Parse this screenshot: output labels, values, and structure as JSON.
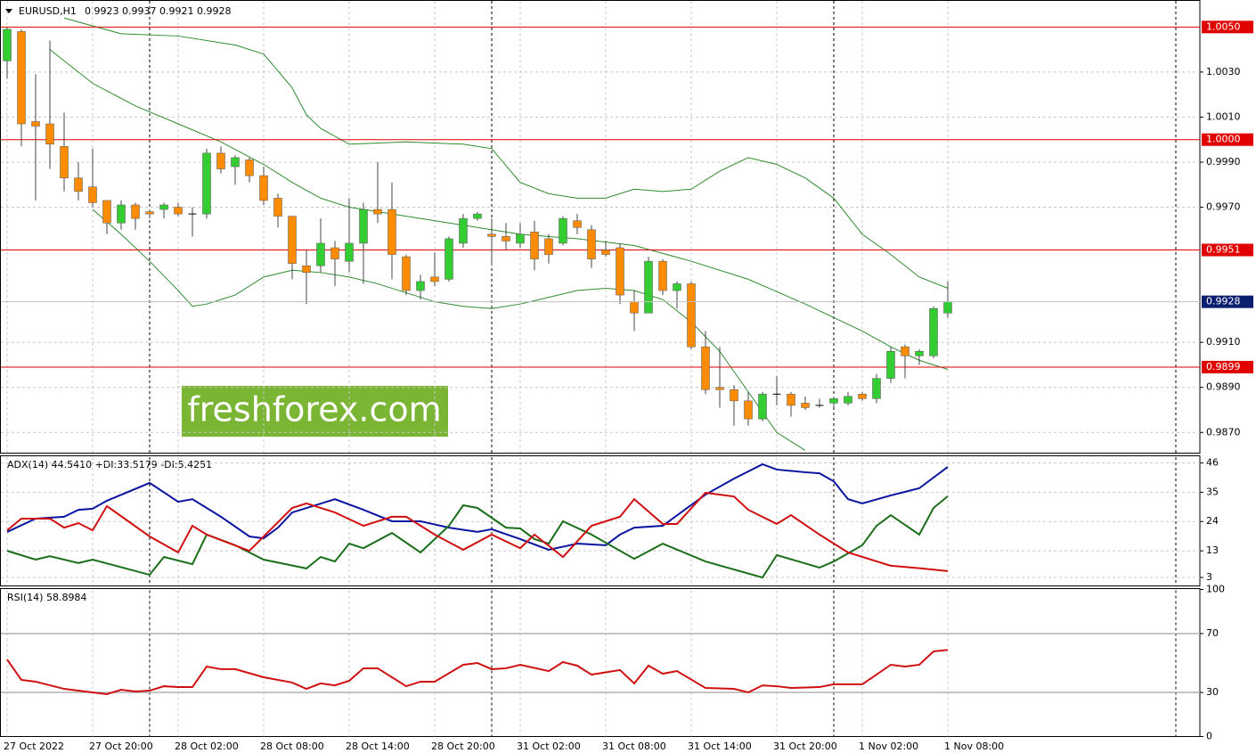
{
  "watermark": "freshforex.com",
  "chart_data": [
    {
      "type": "candlestick",
      "title": "EURUSD,H1",
      "categories": [
        "27 Oct 2022",
        null,
        null,
        null,
        null,
        null,
        "27 Oct 20:00",
        null,
        null,
        null,
        null,
        null,
        "28 Oct 02:00",
        null,
        null,
        null,
        null,
        null,
        "28 Oct 08:00",
        null,
        null,
        null,
        null,
        null,
        "28 Oct 14:00",
        null,
        null,
        null,
        null,
        null,
        "28 Oct 20:00",
        null,
        null,
        null,
        null,
        null,
        "31 Oct 02:00",
        null,
        null,
        null,
        null,
        null,
        "31 Oct 08:00",
        null,
        null,
        null,
        null,
        null,
        "31 Oct 14:00",
        null,
        null,
        null,
        null,
        null,
        "31 Oct 20:00",
        null,
        null,
        null,
        null,
        null,
        "1 Nov 02:00",
        null,
        null,
        null,
        null,
        null,
        "1 Nov 08:00"
      ],
      "open": [
        1.0035,
        1.0048,
        1.0008,
        1.0007,
        0.9997,
        0.9983,
        0.9979,
        0.9973,
        0.9963,
        0.9971,
        0.9968,
        0.9969,
        0.997,
        0.9967,
        0.9967,
        0.9994,
        0.9988,
        0.9991,
        0.9984,
        0.9974,
        0.9966,
        0.9944,
        0.9944,
        0.9952,
        0.9946,
        0.9954,
        0.9969,
        0.9969,
        0.9948,
        0.9933,
        0.9939,
        0.9938,
        0.9954,
        0.9965,
        0.9958,
        0.9957,
        0.9954,
        0.9959,
        0.9956,
        0.9954,
        0.9964,
        0.996,
        0.9951,
        0.9952,
        0.9928,
        0.9923,
        0.9946,
        0.9933,
        0.9936,
        0.9908,
        0.989,
        0.9889,
        0.9884,
        0.9876,
        0.9887,
        0.9887,
        0.9883,
        0.9882,
        0.9883,
        0.9883,
        0.9887,
        0.9885,
        0.9894,
        0.9908,
        0.9904,
        0.9904,
        0.9923
      ],
      "high": [
        1.005,
        1.0049,
        1.0029,
        1.0044,
        1.0012,
        0.999,
        0.9996,
        0.9973,
        0.9973,
        0.9972,
        0.9969,
        0.9972,
        0.9972,
        0.997,
        0.9996,
        0.9997,
        0.9993,
        0.9992,
        0.9988,
        0.9976,
        0.9966,
        0.9951,
        0.9965,
        0.9955,
        0.9974,
        0.9972,
        0.999,
        0.9981,
        0.9949,
        0.994,
        0.995,
        0.9957,
        0.9967,
        0.9968,
        0.9965,
        0.9963,
        0.9963,
        0.9964,
        0.9958,
        0.9966,
        0.9967,
        0.9962,
        0.9955,
        0.9954,
        0.9933,
        0.9948,
        0.9947,
        0.9937,
        0.9937,
        0.9915,
        0.9908,
        0.9891,
        0.9888,
        0.9888,
        0.9895,
        0.9888,
        0.9886,
        0.9885,
        0.9886,
        0.9888,
        0.9888,
        0.9896,
        0.9908,
        0.9909,
        0.9907,
        0.9926,
        0.9937
      ],
      "low": [
        1.0027,
        0.9997,
        0.9973,
        0.9987,
        0.9977,
        0.9973,
        0.997,
        0.9958,
        0.996,
        0.996,
        0.9965,
        0.9965,
        0.9966,
        0.9957,
        0.9965,
        0.9985,
        0.998,
        0.9981,
        0.9971,
        0.9961,
        0.9938,
        0.9927,
        0.9941,
        0.9935,
        0.9941,
        0.9936,
        0.9963,
        0.9938,
        0.9931,
        0.9929,
        0.9935,
        0.9937,
        0.9952,
        0.9964,
        0.9944,
        0.9951,
        0.9952,
        0.9942,
        0.9945,
        0.9953,
        0.9958,
        0.9943,
        0.9948,
        0.9927,
        0.9915,
        0.9923,
        0.9931,
        0.9925,
        0.9907,
        0.9887,
        0.9881,
        0.9873,
        0.9873,
        0.9875,
        0.9882,
        0.9877,
        0.988,
        0.9881,
        0.9881,
        0.9882,
        0.9884,
        0.9883,
        0.9892,
        0.9894,
        0.99,
        0.9903,
        0.9921
      ],
      "close": [
        1.0049,
        1.0007,
        1.0006,
        0.9998,
        0.9983,
        0.9977,
        0.9972,
        0.9963,
        0.9971,
        0.9965,
        0.9967,
        0.9971,
        0.9967,
        0.9967,
        0.9994,
        0.9987,
        0.9992,
        0.9984,
        0.9973,
        0.9966,
        0.9945,
        0.9941,
        0.9954,
        0.9947,
        0.9954,
        0.9969,
        0.9967,
        0.9949,
        0.9933,
        0.9937,
        0.9937,
        0.9956,
        0.9965,
        0.9967,
        0.9957,
        0.9955,
        0.9958,
        0.9947,
        0.9949,
        0.9965,
        0.9961,
        0.9947,
        0.9949,
        0.9931,
        0.9923,
        0.9946,
        0.9933,
        0.9936,
        0.9908,
        0.9889,
        0.9889,
        0.9884,
        0.9876,
        0.9887,
        0.9887,
        0.9882,
        0.9881,
        0.9882,
        0.9885,
        0.9886,
        0.9885,
        0.9894,
        0.9906,
        0.9904,
        0.9906,
        0.9925,
        0.9928
      ],
      "up_color": "#33cc33",
      "down_color": "#ff8c00",
      "wick_color": "#444444",
      "ylim": [
        0.9861,
        1.0062
      ],
      "yticks": [
        {
          "value": 0.987,
          "label": "0.9870"
        },
        {
          "value": 0.989,
          "label": "0.9890"
        },
        {
          "value": 0.991,
          "label": "0.9910"
        },
        {
          "value": 0.997,
          "label": "0.9970"
        },
        {
          "value": 0.999,
          "label": "0.9990"
        },
        {
          "value": 1.001,
          "label": "1.0010"
        },
        {
          "value": 1.003,
          "label": "1.0030"
        }
      ],
      "grid": true,
      "levels": [
        {
          "value": 1.005,
          "label": "1.0050"
        },
        {
          "value": 1,
          "label": "1.0000"
        },
        0.9951,
        0.9899
      ],
      "level_color": "#e00000",
      "last_price_color": "#0b1f6e",
      "bollinger": {
        "color": "#2e8b2e",
        "upper": {
          "x": [
            4,
            8,
            12,
            16,
            18,
            20,
            21,
            22,
            24,
            28,
            32,
            34,
            36,
            38,
            40,
            42,
            44,
            46,
            48,
            50,
            52,
            54,
            56,
            58,
            60,
            62,
            64,
            66
          ],
          "values": [
            1.0054,
            1.0047,
            1.0046,
            1.0042,
            1.0038,
            1.0023,
            1.0011,
            1.0005,
            0.9998,
            0.9999,
            0.9998,
            0.9996,
            0.9981,
            0.9976,
            0.9974,
            0.9974,
            0.9978,
            0.9977,
            0.9978,
            0.9986,
            0.9992,
            0.9989,
            0.9983,
            0.9974,
            0.9958,
            0.9949,
            0.9939,
            0.9934
          ]
        },
        "middle": {
          "x": [
            3,
            6,
            9,
            12,
            15,
            18,
            20,
            22,
            24,
            28,
            32,
            36,
            40,
            44,
            48,
            52,
            56,
            60,
            62,
            64,
            66
          ],
          "values": [
            1.004,
            1.0025,
            1.0015,
            1.0007,
            0.9999,
            0.9989,
            0.9981,
            0.9974,
            0.997,
            0.9966,
            0.9962,
            0.9958,
            0.9956,
            0.9953,
            0.9946,
            0.9938,
            0.9927,
            0.9915,
            0.9908,
            0.9902,
            0.9898
          ]
        },
        "lower": {
          "x": [
            6,
            8,
            10,
            12,
            13,
            14,
            16,
            18,
            20,
            22,
            24,
            26,
            28,
            30,
            32,
            34,
            36,
            38,
            40,
            42,
            44,
            46,
            48,
            50,
            52,
            54,
            56
          ],
          "values": [
            0.9969,
            0.9958,
            0.9946,
            0.9933,
            0.9926,
            0.9927,
            0.9931,
            0.9939,
            0.9942,
            0.9941,
            0.9939,
            0.9936,
            0.9932,
            0.9928,
            0.9926,
            0.9925,
            0.9927,
            0.993,
            0.9933,
            0.9934,
            0.9933,
            0.9929,
            0.9919,
            0.9906,
            0.9888,
            0.987,
            0.9862
          ]
        }
      }
    },
    {
      "type": "line",
      "title": "ADX(14) 44.5410 +DI:33.5179 -DI:5.4251",
      "ylim": [
        0,
        48.5
      ],
      "yticks": [
        3,
        13,
        24,
        35,
        46
      ],
      "grid": true,
      "series": [
        {
          "color": "#0a14a0",
          "x": [
            0,
            2,
            4,
            5,
            6,
            7,
            10,
            12,
            13,
            15,
            17,
            18,
            19,
            20,
            23,
            25,
            27,
            29,
            31,
            33,
            34,
            36,
            38,
            40,
            42,
            43,
            44,
            46,
            49,
            51,
            53,
            54,
            56,
            57,
            58,
            59,
            60,
            62,
            64,
            66
          ],
          "values": [
            20.1,
            25.1,
            25.8,
            28.4,
            28.8,
            31.8,
            38.5,
            31.4,
            32.4,
            25.8,
            18.4,
            17.7,
            21.7,
            27.4,
            32.4,
            28.4,
            24.1,
            24.1,
            21.7,
            20.1,
            21.1,
            17.4,
            13.4,
            15.7,
            15.1,
            19.1,
            21.7,
            22.4,
            34.1,
            40.1,
            45.5,
            43.5,
            42.5,
            42.1,
            39.1,
            32.4,
            30.8,
            33.8,
            36.5,
            44.5
          ]
        },
        {
          "color": "#1a6e1a",
          "x": [
            0,
            2,
            3,
            5,
            6,
            10,
            11,
            13,
            14,
            16,
            18,
            21,
            22,
            23,
            24,
            25,
            27,
            29,
            31,
            32,
            33,
            35,
            36,
            37,
            38,
            39,
            41,
            44,
            46,
            49,
            53,
            54,
            57,
            58,
            60,
            61,
            62,
            64,
            65,
            66
          ],
          "values": [
            13.0,
            9.7,
            11.0,
            8.4,
            9.7,
            4.0,
            10.7,
            8.0,
            19.1,
            15.1,
            9.7,
            6.4,
            10.7,
            9.0,
            15.7,
            14.0,
            19.7,
            12.4,
            22.4,
            30.1,
            29.1,
            21.7,
            21.4,
            17.4,
            15.7,
            24.1,
            19.1,
            10.0,
            15.7,
            9.0,
            3.0,
            11.4,
            6.7,
            9.0,
            15.1,
            22.4,
            26.4,
            19.1,
            29.1,
            33.5
          ]
        },
        {
          "color": "#d01010",
          "x": [
            0,
            1,
            3,
            4,
            5,
            6,
            7,
            10,
            12,
            13,
            14,
            17,
            20,
            21,
            23,
            25,
            27,
            28,
            30,
            32,
            34,
            36,
            37,
            39,
            41,
            43,
            44,
            46,
            47,
            49,
            51,
            52,
            54,
            55,
            57,
            59,
            62,
            64,
            66
          ],
          "values": [
            20.7,
            25.1,
            25.1,
            21.7,
            23.4,
            20.7,
            29.8,
            18.4,
            12.4,
            22.4,
            19.1,
            13.0,
            29.1,
            30.8,
            27.4,
            22.4,
            25.8,
            25.8,
            19.1,
            13.4,
            19.1,
            14.0,
            19.1,
            10.7,
            22.4,
            25.8,
            32.4,
            23.1,
            23.1,
            34.8,
            33.4,
            28.4,
            23.1,
            26.4,
            19.1,
            12.4,
            7.4,
            6.5,
            5.4
          ]
        }
      ]
    },
    {
      "type": "line",
      "title": "RSI(14) 58.8984",
      "ylim": [
        0,
        100
      ],
      "yticks": [
        0,
        30,
        70,
        100
      ],
      "grid": false,
      "levels": [
        30,
        70
      ],
      "level_color": "#b0b0b0",
      "series": [
        {
          "color": "#d01010",
          "x": [
            0,
            1,
            2,
            4,
            6,
            7,
            8,
            9,
            10,
            11,
            12,
            13,
            14,
            15,
            16,
            18,
            20,
            21,
            22,
            23,
            24,
            25,
            26,
            28,
            29,
            30,
            32,
            33,
            34,
            35,
            36,
            38,
            39,
            40,
            41,
            43,
            44,
            45,
            46,
            47,
            49,
            51,
            52,
            53,
            54,
            55,
            57,
            58,
            60,
            62,
            63,
            64,
            65,
            66
          ],
          "values": [
            52.4,
            38.5,
            37.3,
            32.4,
            30.0,
            28.8,
            31.8,
            30.6,
            31.2,
            34.2,
            33.6,
            33.6,
            47.6,
            45.8,
            45.8,
            40.3,
            36.7,
            32.4,
            36.1,
            34.8,
            37.9,
            46.4,
            46.4,
            34.2,
            37.3,
            37.3,
            48.8,
            50.0,
            45.8,
            46.4,
            48.8,
            44.5,
            50.6,
            48.2,
            42.1,
            45.2,
            36.1,
            48.2,
            42.7,
            44.5,
            33.0,
            32.4,
            30.0,
            34.8,
            34.2,
            33.0,
            33.6,
            35.5,
            35.5,
            48.8,
            47.6,
            48.8,
            57.9,
            58.9
          ]
        }
      ]
    }
  ]
}
